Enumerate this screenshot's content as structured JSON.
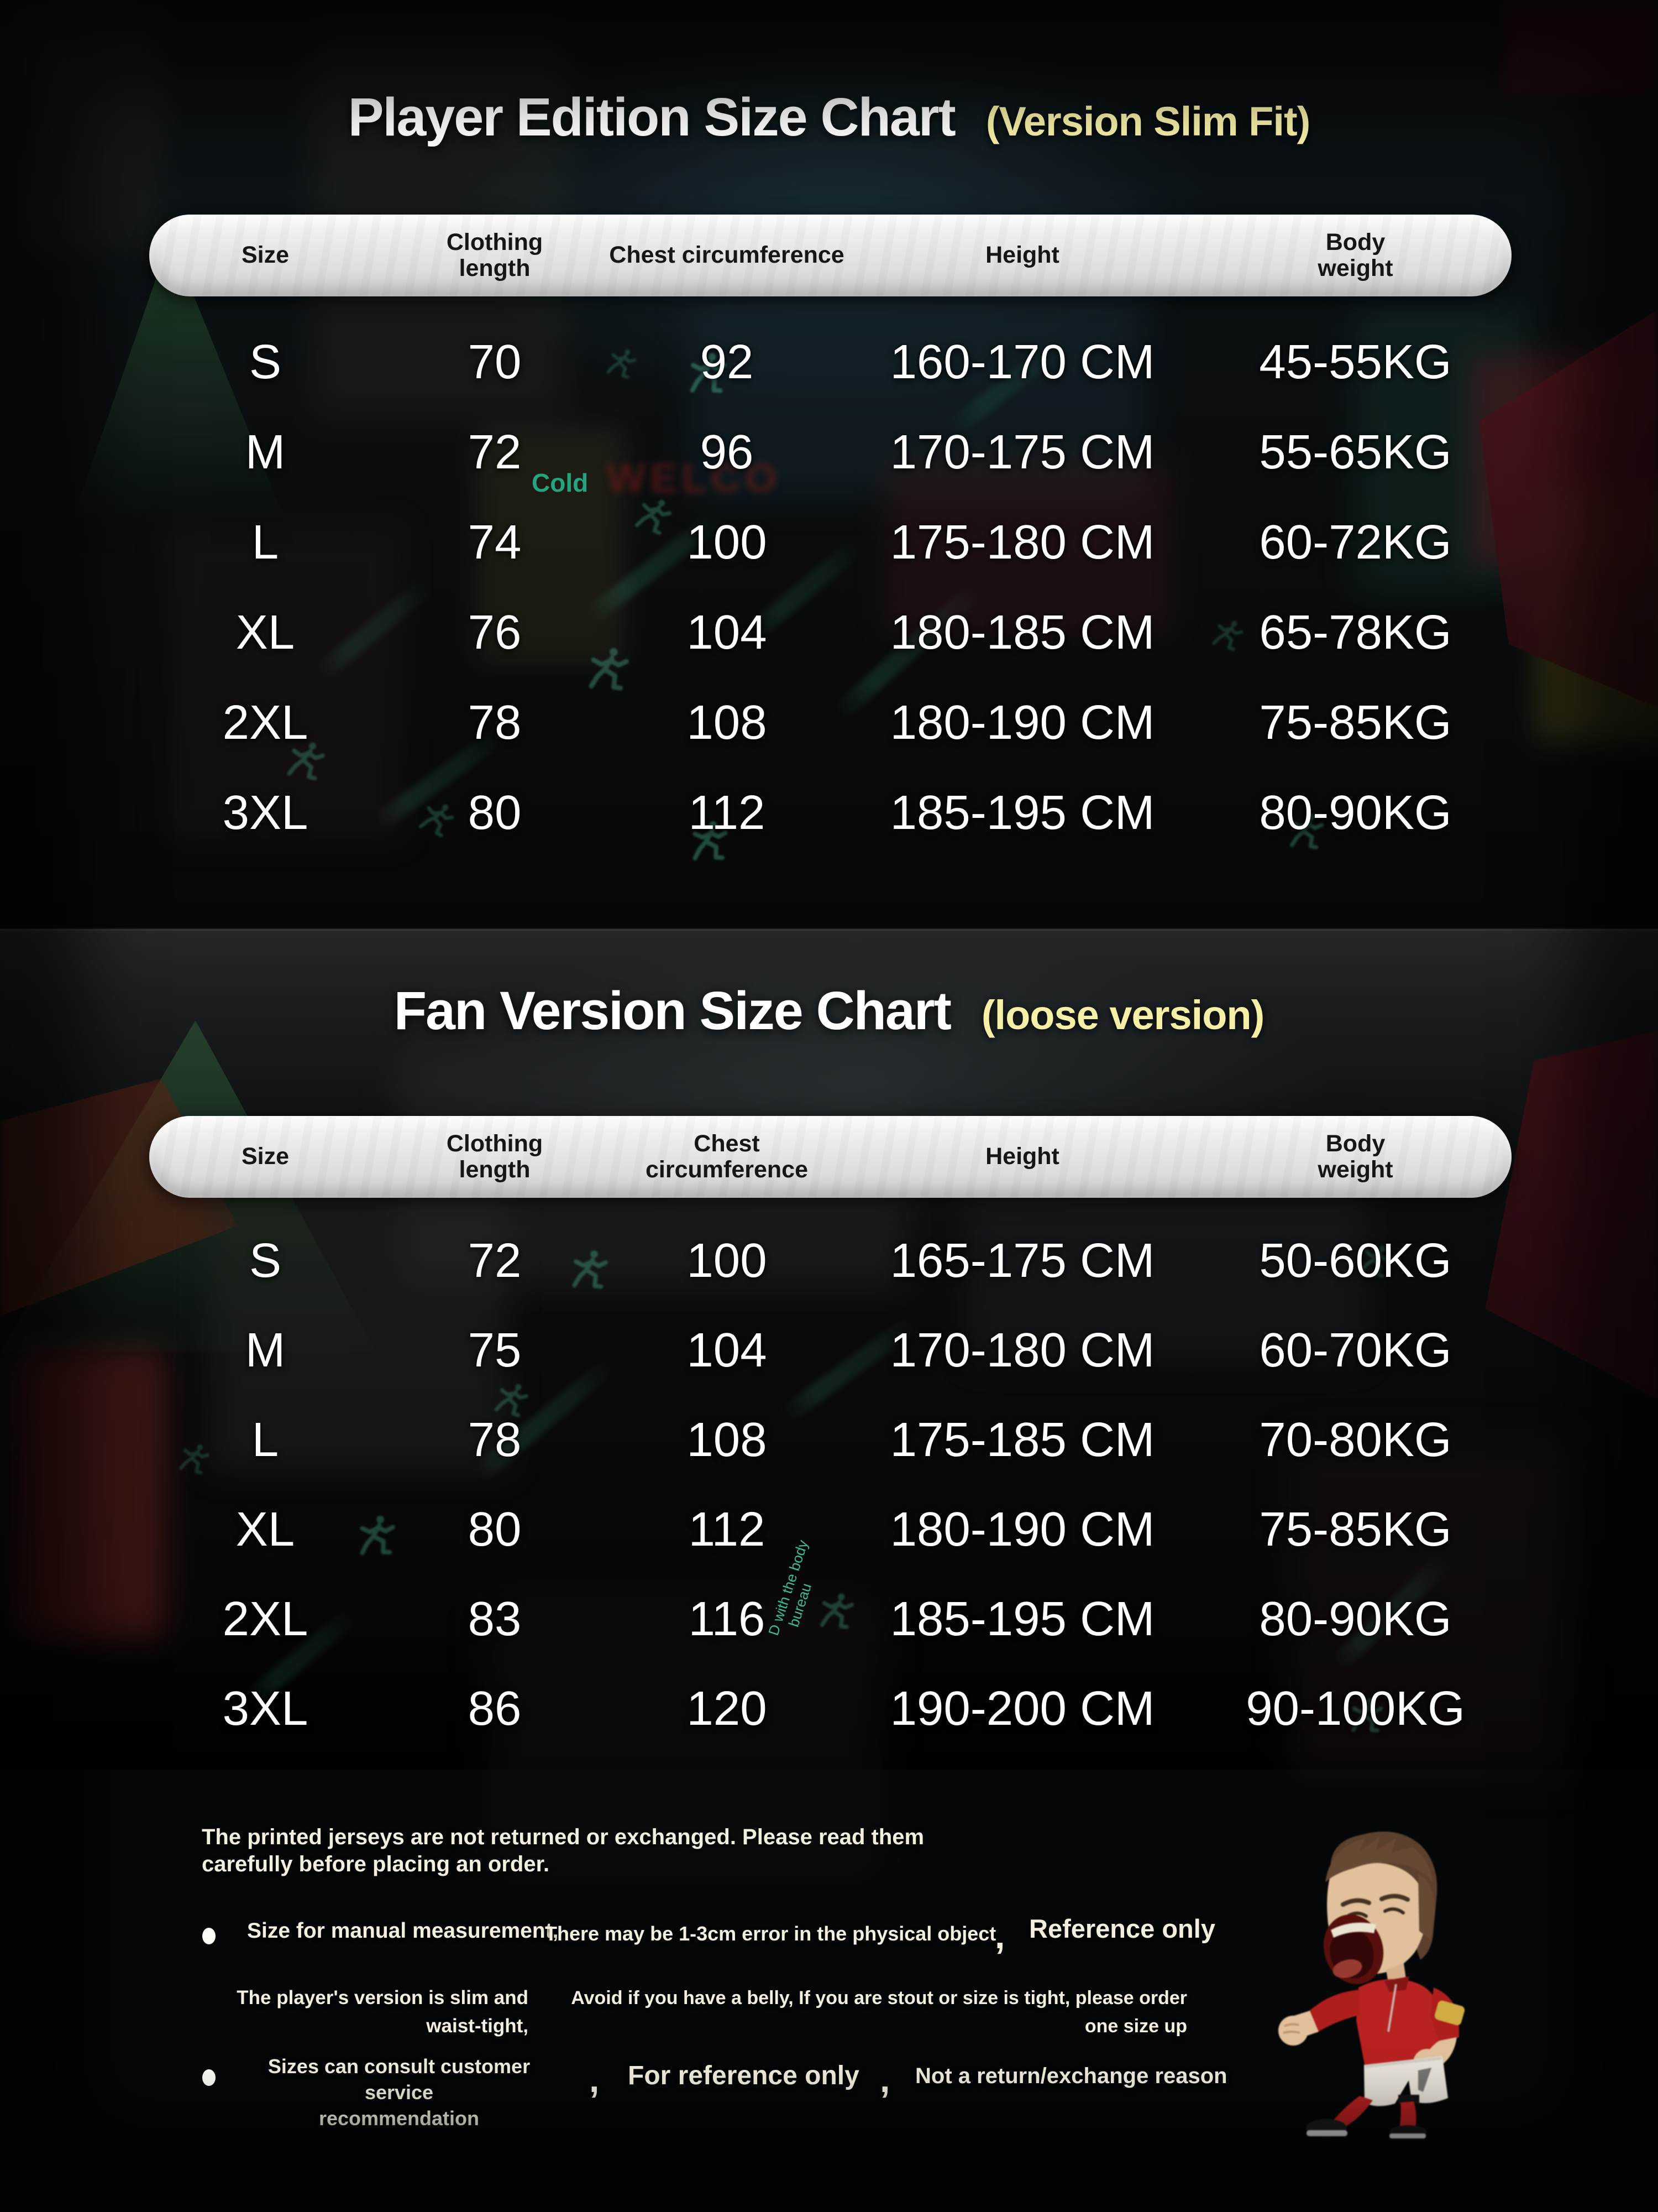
{
  "colors": {
    "accent_yellow": "#f6f0a6",
    "table_text": "#ffffff",
    "header_pill_bg": "#e9e9e9",
    "header_text": "#161616",
    "note_text": "#f3efdf",
    "watermark_teal": "#43cfa6",
    "watermark_green": "#26a47d",
    "canopy_green": "#2c5134",
    "canopy_red": "#5a1620",
    "jersey_red": "#c42120"
  },
  "chart_data": [
    {
      "type": "table",
      "title": "Player Edition Size Chart",
      "subtitle": "(Version Slim Fit)",
      "columns": [
        "Size",
        "Clothing length",
        "Chest circumference",
        "Height",
        "Body weight"
      ],
      "rows": [
        [
          "S",
          "70",
          "92",
          "160-170 CM",
          "45-55KG"
        ],
        [
          "M",
          "72",
          "96",
          "170-175 CM",
          "55-65KG"
        ],
        [
          "L",
          "74",
          "100",
          "175-180 CM",
          "60-72KG"
        ],
        [
          "XL",
          "76",
          "104",
          "180-185 CM",
          "65-78KG"
        ],
        [
          "2XL",
          "78",
          "108",
          "180-190 CM",
          "75-85KG"
        ],
        [
          "3XL",
          "80",
          "112",
          "185-195 CM",
          "80-90KG"
        ]
      ]
    },
    {
      "type": "table",
      "title": "Fan Version Size Chart",
      "subtitle": "(loose version)",
      "columns": [
        "Size",
        "Clothing length",
        "Chest circumference",
        "Height",
        "Body weight"
      ],
      "rows": [
        [
          "S",
          "72",
          "100",
          "165-175 CM",
          "50-60KG"
        ],
        [
          "M",
          "75",
          "104",
          "170-180 CM",
          "60-70KG"
        ],
        [
          "L",
          "78",
          "108",
          "175-185 CM",
          "70-80KG"
        ],
        [
          "XL",
          "80",
          "112",
          "180-190 CM",
          "75-85KG"
        ],
        [
          "2XL",
          "83",
          "116",
          "185-195 CM",
          "80-90KG"
        ],
        [
          "3XL",
          "86",
          "120",
          "190-200 CM",
          "90-100KG"
        ]
      ]
    }
  ],
  "notes": {
    "intro": {
      "line1": "The printed jerseys are not returned or exchanged. Please read them",
      "line2": "carefully before placing an order."
    },
    "bullet1": {
      "item1": "Size for manual measurement,",
      "item2": "There may be 1-3cm error in the physical object",
      "separator": ",",
      "item3": "Reference only"
    },
    "row2": {
      "left_line1": "The player's version is slim and",
      "left_line2": "waist-tight,",
      "right_line1": "Avoid if you have a belly, If you are stout or size is tight, please order",
      "right_line2": "one size up"
    },
    "bullet2": {
      "item1_line1": "Sizes can consult customer service",
      "item1_line2": "recommendation",
      "separator1": ",",
      "item2": "For reference only",
      "separator2": ",",
      "item3": "Not a return/exchange reason"
    }
  },
  "background": {
    "label_cold": "Cold",
    "label_body1": "D with the body",
    "label_body2": "bureau",
    "label_welcome": "WELCO"
  },
  "mascot": {
    "alt": "Cartoon footballer in red jersey and white shorts screaming in celebration"
  }
}
